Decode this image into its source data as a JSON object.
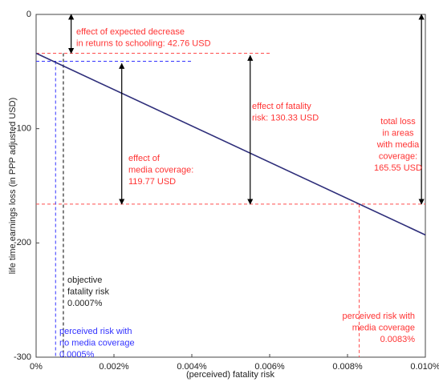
{
  "chart_data": {
    "type": "line",
    "xlabel": "(perceived) fatality risk",
    "ylabel": "life time earnings loss (in PPP adjusted USD)",
    "xlim": [
      0,
      0.01
    ],
    "ylim": [
      -300,
      0
    ],
    "xticks": [
      {
        "value": 0,
        "label": "0%"
      },
      {
        "value": 0.002,
        "label": "0.002%"
      },
      {
        "value": 0.004,
        "label": "0.004%"
      },
      {
        "value": 0.006,
        "label": "0.006%"
      },
      {
        "value": 0.008,
        "label": "0.008%"
      },
      {
        "value": 0.01,
        "label": "0.010%"
      }
    ],
    "yticks": [
      0,
      -100,
      -200,
      -300
    ],
    "series": [
      {
        "color": "#2e2e7a",
        "x": [
          0,
          0.01
        ],
        "values": [
          -34,
          -193
        ]
      }
    ],
    "guides": [
      {
        "color": "#ff4d4d",
        "x": [
          0,
          0.006
        ],
        "values": [
          -34,
          -34
        ]
      },
      {
        "color": "#3333ff",
        "x": [
          0,
          0.004
        ],
        "values": [
          -41,
          -41
        ]
      },
      {
        "color": "#ff4d4d",
        "x": [
          0,
          0.01
        ],
        "values": [
          -166,
          -166
        ]
      },
      {
        "color": "#000000",
        "x": [
          0.0007,
          0.0007
        ],
        "values": [
          -34,
          -300
        ]
      },
      {
        "color": "#3333ff",
        "x": [
          0.0005,
          0.0005
        ],
        "values": [
          -41,
          -300
        ]
      },
      {
        "color": "#ff4d4d",
        "x": [
          0.0083,
          0.0083
        ],
        "values": [
          -166,
          -300
        ]
      }
    ],
    "arrows": [
      {
        "x": 0.0009,
        "values": [
          0,
          -34
        ]
      },
      {
        "x": 0.0022,
        "values": [
          -43,
          -166
        ]
      },
      {
        "x": 0.0055,
        "values": [
          -36,
          -166
        ]
      },
      {
        "x": 0.0099,
        "values": [
          0,
          -166
        ]
      }
    ],
    "annotations": [
      {
        "color": "#ff3333",
        "lines": [
          "effect of expected decrease",
          "in returns to schooling: 42.76 USD"
        ]
      },
      {
        "color": "#ff3333",
        "lines": [
          "effect of fatality",
          "risk: 130.33 USD"
        ]
      },
      {
        "color": "#ff3333",
        "lines": [
          "effect of",
          "media coverage:",
          "119.77 USD"
        ]
      },
      {
        "color": "#ff3333",
        "lines": [
          "total loss",
          "in areas",
          "with media",
          "coverage:",
          "165.55 USD"
        ]
      },
      {
        "color": "#222222",
        "lines": [
          "objective",
          "fatality risk",
          "0.0007%"
        ]
      },
      {
        "color": "#ff3333",
        "lines": [
          "perceived risk with",
          "media coverage",
          "0.0083%"
        ]
      },
      {
        "color": "#3333ff",
        "lines": [
          "perceived risk with",
          "no media coverage",
          "0.0005%"
        ]
      }
    ]
  }
}
